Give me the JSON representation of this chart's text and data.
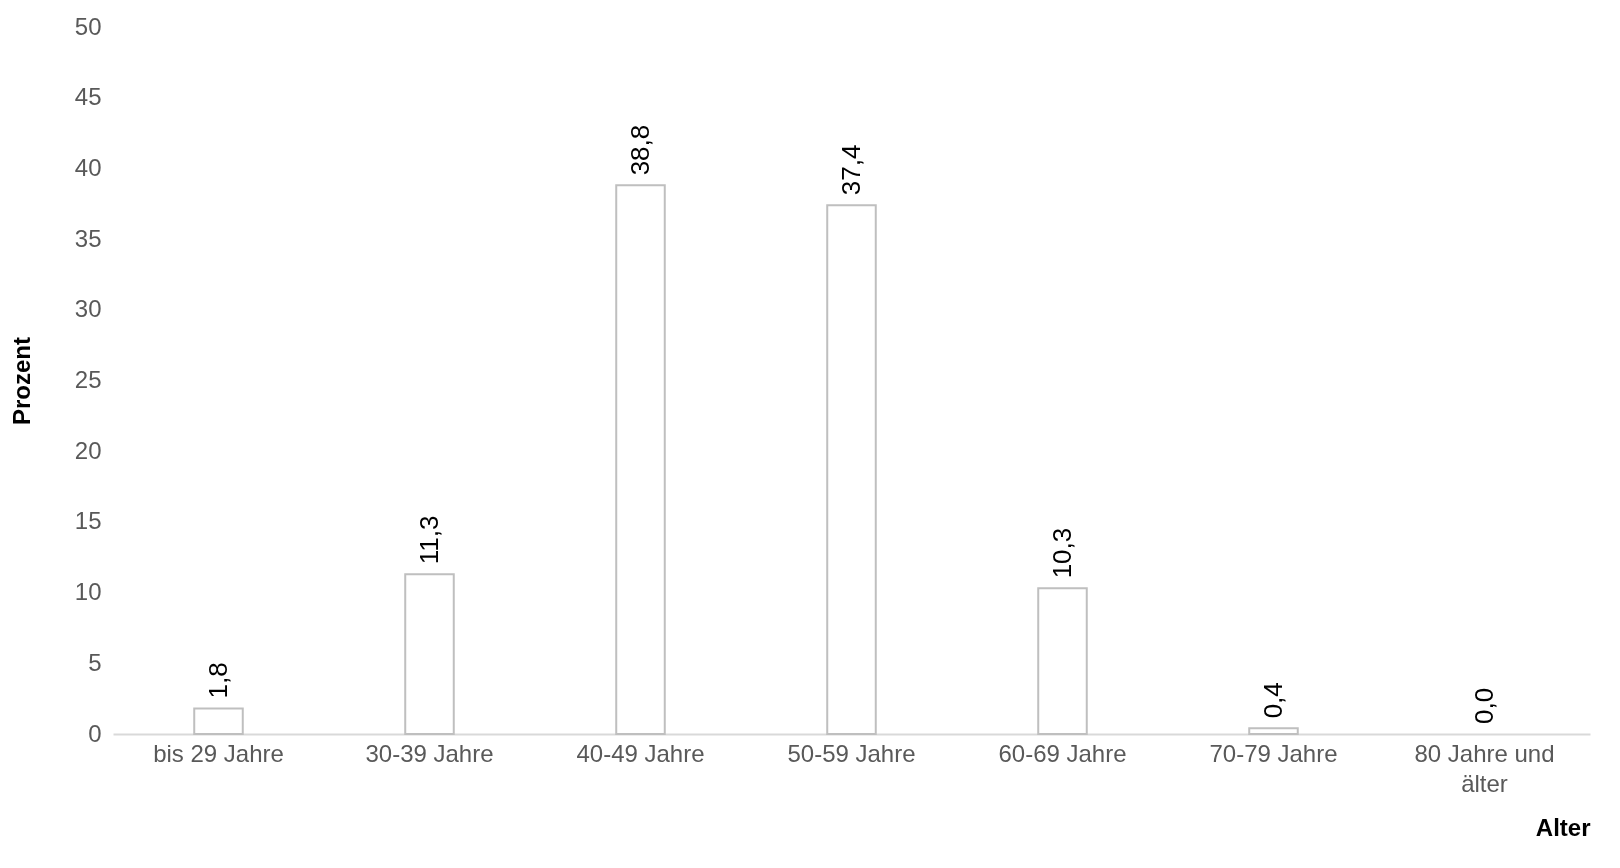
{
  "chart_data": {
    "type": "bar",
    "xlabel": "Alter",
    "ylabel": "Prozent",
    "categories": [
      "bis 29 Jahre",
      "30-39 Jahre",
      "40-49 Jahre",
      "50-59 Jahre",
      "60-69 Jahre",
      "70-79 Jahre",
      "80 Jahre und älter"
    ],
    "values": [
      1.8,
      11.3,
      38.8,
      37.4,
      10.3,
      0.4,
      0.0
    ],
    "value_labels": [
      "1,8",
      "11,3",
      "38,8",
      "37,4",
      "10,3",
      "0,4",
      "0,0"
    ],
    "color": "#ffffff",
    "ylim": [
      0,
      50
    ],
    "yticks": [
      0,
      5,
      10,
      15,
      20,
      25,
      30,
      35,
      40,
      45,
      50
    ],
    "grid": false
  }
}
